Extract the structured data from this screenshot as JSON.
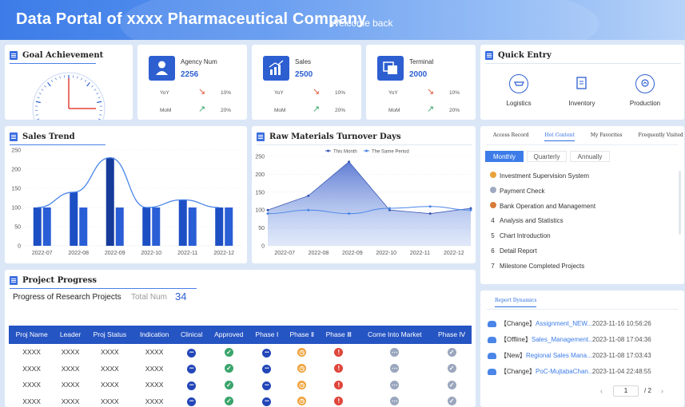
{
  "header": {
    "title": "Data Portal of xxxx Pharmaceutical Company",
    "welcome": "Welcome back"
  },
  "goal": {
    "title": "Goal Achievement",
    "gauge_value_fraction": 0.5
  },
  "kpis": [
    {
      "label": "Agency Num",
      "value": "2256",
      "yoy_label": "YoY",
      "yoy": "10%",
      "mom_label": "MoM",
      "mom": "20%",
      "icon": "person-icon"
    },
    {
      "label": "Sales",
      "value": "2500",
      "yoy_label": "YoY",
      "yoy": "10%",
      "mom_label": "MoM",
      "mom": "20%",
      "icon": "bar-chart-icon"
    },
    {
      "label": "Terminal",
      "value": "2000",
      "yoy_label": "YoY",
      "yoy": "10%",
      "mom_label": "MoM",
      "mom": "20%",
      "icon": "terminal-icon"
    }
  ],
  "quick_entry": {
    "title": "Quick Entry",
    "items": [
      {
        "label": "Logistics",
        "icon": "logistics-icon"
      },
      {
        "label": "Inventory",
        "icon": "inventory-icon"
      },
      {
        "label": "Production",
        "icon": "production-icon"
      }
    ]
  },
  "chart_data": [
    {
      "type": "bar",
      "title": "Sales Trend",
      "categories": [
        "2022-07",
        "2022-08",
        "2022-09",
        "2022-10",
        "2022-11",
        "2022-12"
      ],
      "series": [
        {
          "values": [
            100,
            140,
            230,
            100,
            120,
            100
          ]
        },
        {
          "values": [
            100,
            100,
            100,
            100,
            100,
            100
          ]
        }
      ],
      "line": [
        100,
        140,
        230,
        100,
        120,
        100
      ],
      "ylim": [
        0,
        250
      ],
      "yticks": [
        0,
        50,
        100,
        150,
        200,
        250
      ],
      "grid": true
    },
    {
      "type": "area",
      "title": "Raw Materials Turnover Days",
      "categories": [
        "2022-07",
        "2022-08",
        "2022-09",
        "2022-10",
        "2022-11",
        "2022-12"
      ],
      "series": [
        {
          "name": "This Month",
          "values": [
            100,
            140,
            235,
            100,
            90,
            105
          ]
        },
        {
          "name": "The Same Period",
          "values": [
            90,
            100,
            90,
            105,
            110,
            100
          ]
        }
      ],
      "ylim": [
        0,
        250
      ],
      "yticks": [
        0,
        50,
        100,
        150,
        200,
        250
      ],
      "legend": "top",
      "grid": true
    }
  ],
  "hot_panel": {
    "tabs": [
      "Access Record",
      "Hot Content",
      "My Favorites",
      "Frequently Visited"
    ],
    "active_tab": 1,
    "periods": [
      "Monthly",
      "Quarterly",
      "Annually"
    ],
    "active_period": 0,
    "items": [
      {
        "rank": "",
        "label": "Investment Supervision System",
        "medal": "#e8a23a"
      },
      {
        "rank": "",
        "label": "Payment Check",
        "medal": "#9fa9c0"
      },
      {
        "rank": "",
        "label": "Bank Operation and Management",
        "medal": "#d87a3a"
      },
      {
        "rank": "4",
        "label": "Analysis and Statistics"
      },
      {
        "rank": "5",
        "label": "Chart Introduction"
      },
      {
        "rank": "6",
        "label": "Detail Report"
      },
      {
        "rank": "7",
        "label": "Milestone Completed Projects"
      }
    ]
  },
  "dynamics": {
    "tab": "Report Dynamics",
    "items": [
      {
        "tag": "【Change】",
        "link": "Assignment_NEW...",
        "time": "2023-11-16 10:56:26"
      },
      {
        "tag": "【Offline】",
        "link": "Sales_Management...",
        "time": "2023-11-08 17:04:36"
      },
      {
        "tag": "【New】",
        "link": "Regional Sales Mana...",
        "time": "2023-11-08 17:03:43"
      },
      {
        "tag": "【Change】",
        "link": "PoC-MujtabaChan...",
        "time": "2023-11-04 22:48:55"
      }
    ],
    "page": "1",
    "total": "/ 2"
  },
  "project": {
    "title": "Project Progress",
    "subtitle": "Progress of Research Projects",
    "total_label": "Total Num",
    "total": "34",
    "columns": [
      "Proj Name",
      "Leader",
      "Proj Status",
      "Indication",
      "Clinical",
      "Approved",
      "Phase Ⅰ",
      "Phase Ⅱ",
      "Phase Ⅲ",
      "Come Into Market",
      "Phase Ⅳ"
    ],
    "rows": [
      {
        "cells": [
          "XXXX",
          "XXXX",
          "XXXX",
          "XXXX"
        ],
        "status": [
          "blue",
          "green",
          "blue",
          "orange",
          "red",
          "gray",
          "gray"
        ]
      },
      {
        "cells": [
          "XXXX",
          "XXXX",
          "XXXX",
          "XXXX"
        ],
        "status": [
          "blue",
          "green",
          "blue",
          "orange",
          "red",
          "gray",
          "gray"
        ]
      },
      {
        "cells": [
          "XXXX",
          "XXXX",
          "XXXX",
          "XXXX"
        ],
        "status": [
          "blue",
          "green",
          "blue",
          "orange",
          "red",
          "gray",
          "gray"
        ]
      },
      {
        "cells": [
          "XXXX",
          "XXXX",
          "XXXX",
          "XXXX"
        ],
        "status": [
          "blue",
          "green",
          "blue",
          "orange",
          "red",
          "gray",
          "gray"
        ]
      }
    ],
    "status_colors": {
      "blue": "#2346b8",
      "green": "#3aa56b",
      "orange": "#f0a23a",
      "red": "#e0453a",
      "gray": "#9aa6bd"
    }
  }
}
